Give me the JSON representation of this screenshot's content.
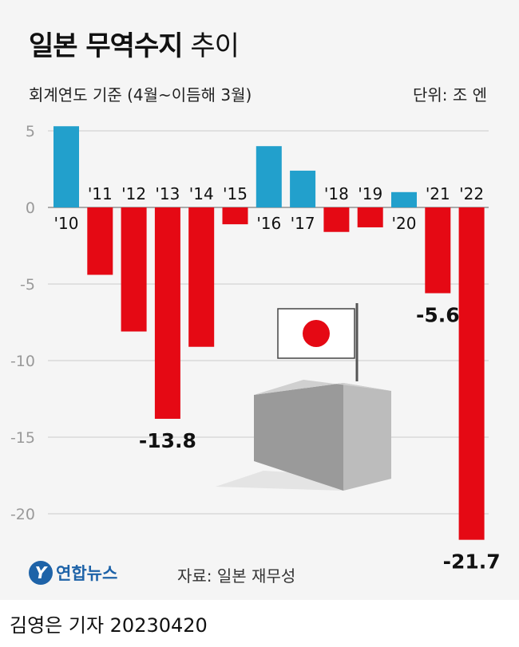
{
  "title_bold": "일본 무역수지",
  "title_rest": "추이",
  "subtitle": "회계연도 기준 (4월~이듬해 3월)",
  "unit": "단위: 조 엔",
  "source": "자료: 일본 재무성",
  "logo": "연합뉴스",
  "credit": "김영은 기자  20230420",
  "colors": {
    "positive": "#22a0cc",
    "negative": "#e50914",
    "grid": "#d9d9d9",
    "axis_text": "#999999"
  },
  "chart_data": {
    "type": "bar",
    "title": "일본 무역수지 추이",
    "categories": [
      "'10",
      "'11",
      "'12",
      "'13",
      "'14",
      "'15",
      "'16",
      "'17",
      "'18",
      "'19",
      "'20",
      "'21",
      "'22"
    ],
    "values": [
      5.3,
      -4.4,
      -8.1,
      -13.8,
      -9.1,
      -1.1,
      4.0,
      2.4,
      -1.6,
      -1.3,
      1.0,
      -5.6,
      -21.7
    ],
    "data_labels": {
      "3": "-13.8",
      "11": "-5.6",
      "12": "-21.7"
    },
    "yticks": [
      5,
      0,
      -5,
      -10,
      -15,
      -20
    ],
    "ytick_labels": [
      "5",
      "0",
      "-5",
      "-10",
      "-15",
      "-20"
    ],
    "ylim": [
      -22,
      6
    ],
    "grid": true,
    "unit": "조 엔"
  }
}
